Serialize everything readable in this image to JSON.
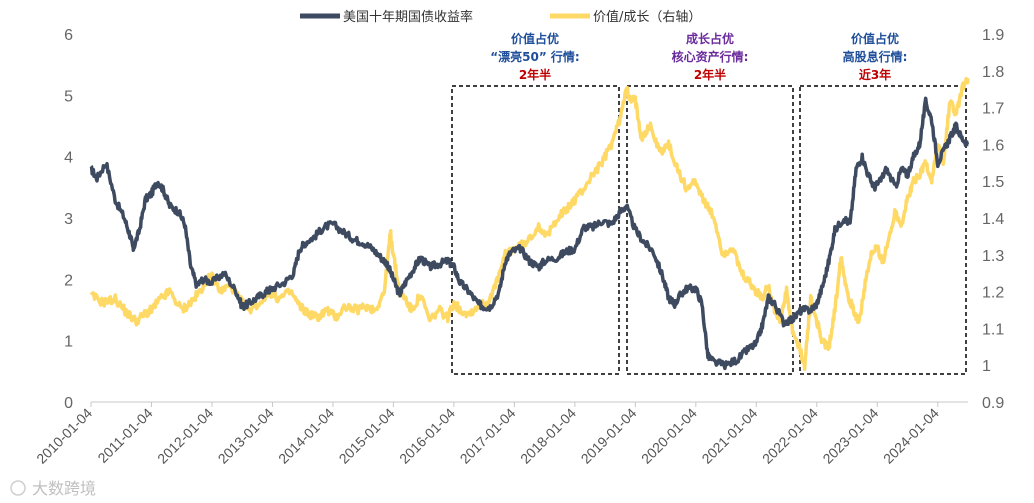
{
  "chart_data": {
    "type": "line",
    "title": "",
    "legend": {
      "placement": "top-center",
      "entries": [
        {
          "name": "美国十年期国债收益率",
          "color": "#3d4a5f",
          "axis": "left"
        },
        {
          "name": "价值/成长（右轴）",
          "color": "#ffd966",
          "axis": "right"
        }
      ]
    },
    "left_axis": {
      "ylim": [
        0,
        6
      ],
      "ticks": [
        "0",
        "1",
        "2",
        "3",
        "4",
        "5",
        "6"
      ]
    },
    "right_axis": {
      "ylim": [
        0.9,
        1.9
      ],
      "ticks": [
        "0.9",
        "1",
        "1.1",
        "1.2",
        "1.3",
        "1.4",
        "1.5",
        "1.6",
        "1.7",
        "1.8",
        "1.9"
      ]
    },
    "x_range": [
      2010.0,
      2024.5
    ],
    "x_ticks": [
      "2010-01-04",
      "2011-01-04",
      "2012-01-04",
      "2013-01-04",
      "2014-01-04",
      "2015-01-04",
      "2016-01-04",
      "2017-01-04",
      "2018-01-04",
      "2019-01-04",
      "2020-01-04",
      "2021-01-04",
      "2022-01-04",
      "2023-01-04",
      "2024-01-04"
    ],
    "series": [
      {
        "name": "美国十年期国债收益率",
        "axis": "left",
        "x": [
          2010.0,
          2010.1,
          2010.25,
          2010.4,
          2010.55,
          2010.65,
          2010.7,
          2010.8,
          2010.9,
          2011.0,
          2011.1,
          2011.2,
          2011.3,
          2011.45,
          2011.55,
          2011.65,
          2011.75,
          2011.85,
          2012.0,
          2012.2,
          2012.4,
          2012.5,
          2012.6,
          2012.75,
          2012.9,
          2013.0,
          2013.2,
          2013.35,
          2013.45,
          2013.55,
          2013.7,
          2013.85,
          2014.0,
          2014.2,
          2014.35,
          2014.5,
          2014.65,
          2014.8,
          2014.9,
          2015.0,
          2015.1,
          2015.2,
          2015.35,
          2015.45,
          2015.6,
          2015.75,
          2015.9,
          2016.0,
          2016.1,
          2016.25,
          2016.4,
          2016.5,
          2016.6,
          2016.75,
          2016.85,
          2016.95,
          2017.1,
          2017.25,
          2017.4,
          2017.5,
          2017.7,
          2017.85,
          2018.0,
          2018.15,
          2018.3,
          2018.45,
          2018.6,
          2018.75,
          2018.85,
          2019.0,
          2019.15,
          2019.3,
          2019.45,
          2019.55,
          2019.65,
          2019.75,
          2019.85,
          2020.0,
          2020.1,
          2020.2,
          2020.3,
          2020.5,
          2020.7,
          2020.85,
          2021.0,
          2021.1,
          2021.2,
          2021.3,
          2021.45,
          2021.6,
          2021.75,
          2021.9,
          2022.0,
          2022.1,
          2022.2,
          2022.3,
          2022.45,
          2022.55,
          2022.65,
          2022.75,
          2022.85,
          2022.95,
          2023.05,
          2023.15,
          2023.3,
          2023.4,
          2023.5,
          2023.6,
          2023.7,
          2023.8,
          2023.9,
          2024.0,
          2024.1,
          2024.2,
          2024.3,
          2024.4,
          2024.5
        ],
        "y": [
          3.8,
          3.65,
          3.9,
          3.3,
          3.0,
          2.7,
          2.5,
          2.8,
          3.3,
          3.4,
          3.6,
          3.45,
          3.2,
          3.1,
          2.9,
          2.2,
          1.9,
          2.0,
          1.95,
          2.1,
          1.8,
          1.55,
          1.6,
          1.7,
          1.8,
          1.85,
          1.95,
          2.1,
          2.5,
          2.6,
          2.7,
          2.85,
          2.9,
          2.75,
          2.65,
          2.6,
          2.5,
          2.35,
          2.25,
          2.0,
          1.75,
          1.95,
          2.2,
          2.35,
          2.2,
          2.25,
          2.3,
          2.2,
          1.95,
          1.8,
          1.6,
          1.55,
          1.55,
          1.8,
          2.3,
          2.45,
          2.5,
          2.3,
          2.2,
          2.3,
          2.35,
          2.45,
          2.5,
          2.85,
          2.85,
          2.95,
          2.9,
          3.1,
          3.2,
          2.8,
          2.6,
          2.45,
          2.05,
          1.7,
          1.6,
          1.75,
          1.85,
          1.85,
          1.6,
          0.75,
          0.65,
          0.6,
          0.7,
          0.85,
          0.95,
          1.25,
          1.7,
          1.6,
          1.3,
          1.35,
          1.5,
          1.5,
          1.6,
          1.9,
          2.3,
          2.8,
          3.0,
          2.9,
          3.8,
          4.0,
          3.7,
          3.5,
          3.6,
          3.8,
          3.5,
          3.8,
          3.7,
          4.0,
          4.2,
          4.9,
          4.6,
          3.9,
          4.1,
          4.3,
          4.5,
          4.3,
          4.2
        ]
      },
      {
        "name": "价值/成长（右轴）",
        "axis": "right",
        "x": [
          2010.0,
          2010.2,
          2010.4,
          2010.6,
          2010.75,
          2010.9,
          2011.0,
          2011.15,
          2011.3,
          2011.5,
          2011.65,
          2011.8,
          2011.9,
          2012.0,
          2012.15,
          2012.3,
          2012.45,
          2012.6,
          2012.8,
          2012.95,
          2013.1,
          2013.3,
          2013.45,
          2013.6,
          2013.75,
          2013.9,
          2014.05,
          2014.2,
          2014.4,
          2014.55,
          2014.7,
          2014.85,
          2014.95,
          2015.0,
          2015.1,
          2015.2,
          2015.3,
          2015.45,
          2015.6,
          2015.75,
          2015.9,
          2016.0,
          2016.1,
          2016.25,
          2016.4,
          2016.55,
          2016.7,
          2016.85,
          2017.0,
          2017.2,
          2017.4,
          2017.55,
          2017.7,
          2017.85,
          2018.0,
          2018.15,
          2018.3,
          2018.45,
          2018.6,
          2018.75,
          2018.85,
          2018.9,
          2019.0,
          2019.1,
          2019.25,
          2019.4,
          2019.55,
          2019.7,
          2019.85,
          2020.0,
          2020.15,
          2020.3,
          2020.45,
          2020.6,
          2020.75,
          2020.9,
          2021.0,
          2021.1,
          2021.2,
          2021.3,
          2021.4,
          2021.5,
          2021.6,
          2021.7,
          2021.8,
          2021.9,
          2022.0,
          2022.1,
          2022.2,
          2022.3,
          2022.4,
          2022.5,
          2022.6,
          2022.7,
          2022.8,
          2022.9,
          2023.0,
          2023.1,
          2023.2,
          2023.3,
          2023.4,
          2023.5,
          2023.6,
          2023.7,
          2023.8,
          2023.9,
          2024.0,
          2024.1,
          2024.2,
          2024.3,
          2024.4,
          2024.5
        ],
        "y": [
          1.19,
          1.17,
          1.18,
          1.14,
          1.12,
          1.14,
          1.15,
          1.18,
          1.2,
          1.15,
          1.17,
          1.2,
          1.23,
          1.24,
          1.2,
          1.22,
          1.18,
          1.15,
          1.17,
          1.2,
          1.18,
          1.2,
          1.16,
          1.14,
          1.13,
          1.15,
          1.13,
          1.16,
          1.15,
          1.16,
          1.15,
          1.2,
          1.36,
          1.3,
          1.2,
          1.18,
          1.15,
          1.19,
          1.12,
          1.15,
          1.13,
          1.17,
          1.15,
          1.14,
          1.16,
          1.17,
          1.22,
          1.3,
          1.32,
          1.33,
          1.38,
          1.35,
          1.4,
          1.42,
          1.45,
          1.48,
          1.52,
          1.55,
          1.6,
          1.67,
          1.76,
          1.72,
          1.72,
          1.62,
          1.65,
          1.58,
          1.6,
          1.53,
          1.48,
          1.5,
          1.44,
          1.4,
          1.3,
          1.32,
          1.25,
          1.22,
          1.2,
          1.18,
          1.22,
          1.15,
          1.12,
          1.2,
          1.09,
          1.05,
          1.0,
          1.18,
          1.12,
          1.06,
          1.05,
          1.15,
          1.3,
          1.2,
          1.15,
          1.12,
          1.22,
          1.3,
          1.32,
          1.28,
          1.35,
          1.42,
          1.38,
          1.45,
          1.5,
          1.52,
          1.55,
          1.5,
          1.6,
          1.55,
          1.72,
          1.68,
          1.75,
          1.78
        ]
      }
    ],
    "annotations": [
      {
        "lines": [
          {
            "text": "价值占优",
            "style": "blue"
          },
          {
            "text": "“漂亮50” 行情:",
            "style": "blue"
          },
          {
            "text": "2年半",
            "style": "red"
          }
        ],
        "period": [
          2016.0,
          2018.75
        ]
      },
      {
        "lines": [
          {
            "text": "成长占优",
            "style": "purple"
          },
          {
            "text": "核心资产行情:",
            "style": "purple"
          },
          {
            "text": "2年半",
            "style": "red"
          }
        ],
        "period": [
          2018.8,
          2021.6
        ]
      },
      {
        "lines": [
          {
            "text": "价值占优",
            "style": "blue"
          },
          {
            "text": "高股息行情:",
            "style": "blue"
          },
          {
            "text": "近3年",
            "style": "red"
          }
        ],
        "period": [
          2021.7,
          2024.5
        ]
      }
    ],
    "watermark": "大数跨境"
  }
}
